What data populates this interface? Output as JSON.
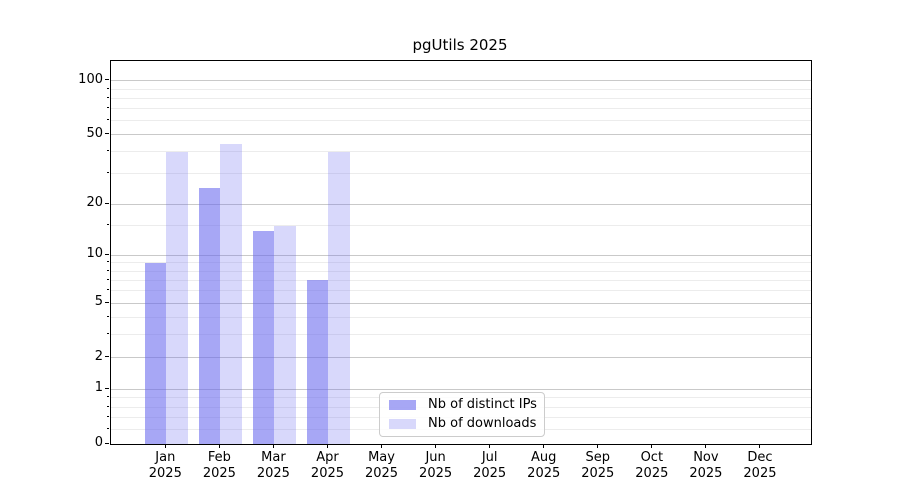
{
  "title": "pgUtils 2025",
  "chart_data": {
    "type": "bar",
    "title": "pgUtils 2025",
    "xlabel": "",
    "ylabel": "",
    "scale": "log1p",
    "grid": true,
    "legend_position": "inside lower-center",
    "categories": [
      {
        "month": "Jan",
        "year": "2025"
      },
      {
        "month": "Feb",
        "year": "2025"
      },
      {
        "month": "Mar",
        "year": "2025"
      },
      {
        "month": "Apr",
        "year": "2025"
      },
      {
        "month": "May",
        "year": "2025"
      },
      {
        "month": "Jun",
        "year": "2025"
      },
      {
        "month": "Jul",
        "year": "2025"
      },
      {
        "month": "Aug",
        "year": "2025"
      },
      {
        "month": "Sep",
        "year": "2025"
      },
      {
        "month": "Oct",
        "year": "2025"
      },
      {
        "month": "Nov",
        "year": "2025"
      },
      {
        "month": "Dec",
        "year": "2025"
      }
    ],
    "series": [
      {
        "name": "Nb of distinct IPs",
        "color": "rgba(101,101,238,0.57)",
        "values": [
          9,
          25,
          14,
          7,
          null,
          null,
          null,
          null,
          null,
          null,
          null,
          null
        ]
      },
      {
        "name": "Nb of downloads",
        "color": "rgba(101,101,238,0.25)",
        "values": [
          40,
          44,
          15,
          40,
          null,
          null,
          null,
          null,
          null,
          null,
          null,
          null
        ]
      }
    ],
    "y_axis": {
      "major_ticks": [
        0,
        1,
        2,
        5,
        10,
        20,
        50,
        100
      ],
      "minor_gridlines": [
        0.2,
        0.4,
        0.6,
        0.8,
        3,
        4,
        6,
        7,
        8,
        9,
        15,
        30,
        40,
        60,
        70,
        80,
        90
      ],
      "ylim": [
        0,
        129
      ]
    }
  }
}
